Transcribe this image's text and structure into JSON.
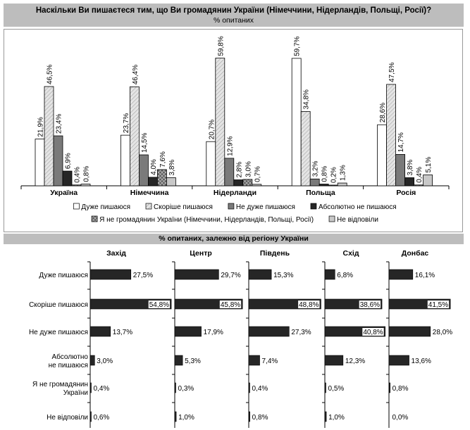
{
  "header": {
    "title": "Наскільки Ви пишаєтеся тим, що Ви громадянин України (Німеччини, Нідерландів, Польщі, Росії)?",
    "subtitle": "% опитаних"
  },
  "section_header": "% опитаних, залежно від регіону України",
  "colors": {
    "very": "#ffffff",
    "rather": "#dcdcdc",
    "not_very": "#7a7a7a",
    "not_at_all": "#262626",
    "not_citizen": "#6e6e6e",
    "no_answer": "#c8c8c8",
    "header_bg": "#bdbdbd",
    "region_bar": "#262626"
  },
  "chart_data": [
    {
      "type": "bar",
      "title": "Наскільки Ви пишаєтеся тим, що Ви громадянин України (Німеччини, Нідерландів, Польщі, Росії)?",
      "ylabel": "% опитаних",
      "ylim": [
        0,
        60
      ],
      "grid": false,
      "legend": "bottom",
      "categories": [
        "Україна",
        "Німеччина",
        "Нідерланди",
        "Польща",
        "Росія"
      ],
      "series": [
        {
          "name": "Дуже пишаюся",
          "values": [
            21.9,
            23.7,
            20.7,
            59.7,
            28.6
          ],
          "labels": [
            "21,9%",
            "23,7%",
            "20,7%",
            "59,7%",
            "28,6%"
          ]
        },
        {
          "name": "Скоріше пишаюся",
          "values": [
            46.5,
            46.4,
            59.8,
            34.8,
            47.5
          ],
          "labels": [
            "46,5%",
            "46,4%",
            "59,8%",
            "34,8%",
            "47,5%"
          ]
        },
        {
          "name": "Не дуже пишаюся",
          "values": [
            23.4,
            14.5,
            12.9,
            3.2,
            14.7
          ],
          "labels": [
            "23,4%",
            "14,5%",
            "12,9%",
            "3,2%",
            "14,7%"
          ]
        },
        {
          "name": "Абсолютно не пишаюся",
          "values": [
            6.9,
            4.0,
            2.8,
            0.8,
            3.8
          ],
          "labels": [
            "6,9%",
            "4,0%",
            "2,8%",
            "0,8%",
            "3,8%"
          ]
        },
        {
          "name": "Я не громадянин України (Німеччини, Нідерландів, Польщі, Росії)",
          "values": [
            0.4,
            7.6,
            3.0,
            0.2,
            0.4
          ],
          "labels": [
            "0,4%",
            "7,6%",
            "3,0%",
            "0,2%",
            "0,4%"
          ]
        },
        {
          "name": "Не відповіли",
          "values": [
            0.8,
            3.8,
            0.7,
            1.3,
            5.1
          ],
          "labels": [
            "0,8%",
            "3,8%",
            "0,7%",
            "1,3%",
            "5,1%"
          ]
        }
      ]
    },
    {
      "type": "bar",
      "orientation": "horizontal",
      "title": "% опитаних, залежно від регіону України",
      "categories": [
        "Дуже пишаюся",
        "Скоріше пишаюся",
        "Не дуже пишаюся",
        "Абсолютно не пишаюся",
        "Я не громадянин України",
        "Не відповіли"
      ],
      "category_display": [
        [
          "Дуже пишаюся"
        ],
        [
          "Скоріше пишаюся"
        ],
        [
          "Не дуже пишаюся"
        ],
        [
          "Абсолютно",
          "не пишаюся"
        ],
        [
          "Я не громадянин",
          "України"
        ],
        [
          "Не відповіли"
        ]
      ],
      "panels": [
        {
          "name": "Захід",
          "values": [
            27.5,
            54.8,
            13.7,
            3.0,
            0.4,
            0.6
          ],
          "labels": [
            "27,5%",
            "54,8%",
            "13,7%",
            "3,0%",
            "0,4%",
            "0,6%"
          ]
        },
        {
          "name": "Центр",
          "values": [
            29.7,
            45.8,
            17.9,
            5.3,
            0.3,
            1.0
          ],
          "labels": [
            "29,7%",
            "45,8%",
            "17,9%",
            "5,3%",
            "0,3%",
            "1,0%"
          ]
        },
        {
          "name": "Південь",
          "values": [
            15.3,
            48.8,
            27.3,
            7.4,
            0.4,
            0.8
          ],
          "labels": [
            "15,3%",
            "48,8%",
            "27,3%",
            "7,4%",
            "0,4%",
            "0,8%"
          ]
        },
        {
          "name": "Схід",
          "values": [
            6.8,
            38.6,
            40.8,
            12.3,
            0.5,
            1.0
          ],
          "labels": [
            "6,8%",
            "38,6%",
            "40,8%",
            "12,3%",
            "0,5%",
            "1,0%"
          ]
        },
        {
          "name": "Донбас",
          "values": [
            16.1,
            41.5,
            28.0,
            13.6,
            0.8,
            0.0
          ],
          "labels": [
            "16,1%",
            "41,5%",
            "28,0%",
            "13,6%",
            "0,8%",
            "0,0%"
          ]
        }
      ]
    }
  ]
}
